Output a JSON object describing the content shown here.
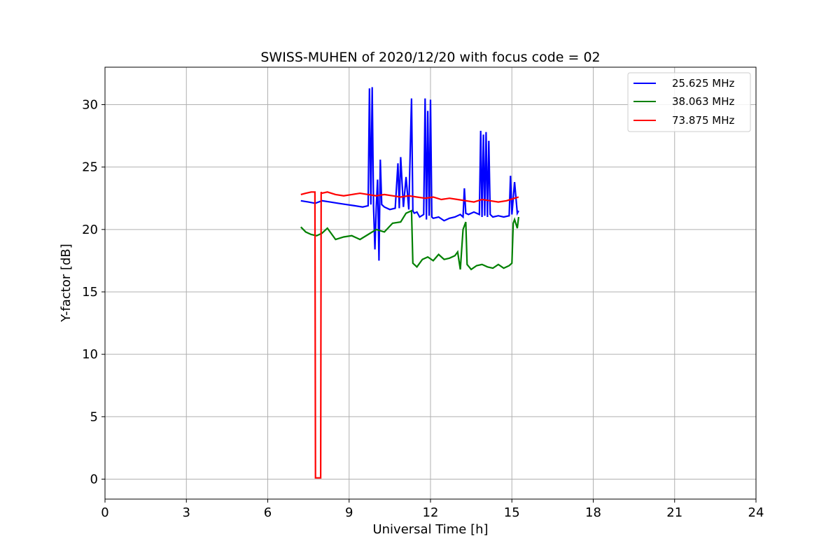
{
  "chart_data": {
    "type": "line",
    "title": "SWISS-MUHEN of 2020/12/20 with focus code = 02",
    "xlabel": "Universal Time [h]",
    "ylabel": "Y-factor [dB]",
    "xlim": [
      0,
      24
    ],
    "ylim": [
      -1.6,
      33
    ],
    "xticks": [
      "0",
      "3",
      "6",
      "9",
      "12",
      "15",
      "18",
      "21",
      "24"
    ],
    "yticks": [
      "0",
      "5",
      "10",
      "15",
      "20",
      "25",
      "30"
    ],
    "xtick_values": [
      0,
      3,
      6,
      9,
      12,
      15,
      18,
      21,
      24
    ],
    "ytick_values": [
      0,
      5,
      10,
      15,
      20,
      25,
      30
    ],
    "grid": true,
    "legend_position": "top-right",
    "series": [
      {
        "name": "25.625 MHz",
        "color": "#0000ff",
        "x": [
          7.22,
          7.5,
          7.75,
          8.0,
          8.3,
          8.6,
          8.9,
          9.2,
          9.5,
          9.7,
          9.75,
          9.8,
          9.85,
          9.9,
          9.95,
          10.0,
          10.05,
          10.1,
          10.15,
          10.2,
          10.3,
          10.5,
          10.7,
          10.8,
          10.85,
          10.9,
          11.0,
          11.1,
          11.2,
          11.3,
          11.35,
          11.4,
          11.5,
          11.6,
          11.75,
          11.8,
          11.85,
          11.9,
          11.95,
          12.0,
          12.05,
          12.1,
          12.3,
          12.5,
          12.7,
          12.9,
          13.1,
          13.2,
          13.25,
          13.3,
          13.4,
          13.6,
          13.8,
          13.85,
          13.9,
          13.95,
          14.0,
          14.05,
          14.1,
          14.15,
          14.2,
          14.3,
          14.5,
          14.7,
          14.9,
          14.95,
          15.0,
          15.1,
          15.2,
          15.25
        ],
        "y": [
          22.3,
          22.2,
          22.1,
          22.3,
          22.2,
          22.1,
          22.0,
          21.9,
          21.8,
          21.9,
          31.3,
          22.0,
          31.4,
          21.9,
          18.4,
          21.8,
          24.0,
          17.5,
          25.6,
          22.0,
          21.8,
          21.6,
          21.7,
          25.3,
          21.7,
          25.8,
          21.8,
          24.2,
          21.6,
          30.5,
          21.5,
          21.3,
          21.4,
          21.0,
          21.2,
          30.5,
          20.8,
          29.5,
          21.1,
          30.4,
          21.0,
          20.9,
          21.0,
          20.7,
          20.9,
          21.0,
          21.2,
          21.0,
          23.3,
          21.3,
          21.2,
          21.4,
          21.2,
          27.9,
          21.0,
          27.6,
          21.1,
          27.8,
          21.0,
          27.1,
          21.2,
          21.0,
          21.1,
          21.0,
          21.1,
          24.3,
          21.2,
          23.8,
          21.3,
          21.5
        ]
      },
      {
        "name": "38.063 MHz",
        "color": "#008000",
        "x": [
          7.22,
          7.4,
          7.6,
          7.8,
          8.0,
          8.2,
          8.5,
          8.8,
          9.1,
          9.4,
          9.7,
          10.0,
          10.3,
          10.6,
          10.9,
          11.1,
          11.3,
          11.35,
          11.5,
          11.7,
          11.9,
          12.1,
          12.3,
          12.5,
          12.7,
          12.9,
          13.0,
          13.1,
          13.2,
          13.3,
          13.35,
          13.5,
          13.7,
          13.9,
          14.1,
          14.3,
          14.5,
          14.7,
          14.9,
          15.0,
          15.05,
          15.1,
          15.2,
          15.25
        ],
        "y": [
          20.2,
          19.8,
          19.6,
          19.5,
          19.7,
          20.1,
          19.2,
          19.4,
          19.5,
          19.2,
          19.6,
          20.0,
          19.8,
          20.5,
          20.6,
          21.3,
          21.5,
          17.3,
          17.0,
          17.6,
          17.8,
          17.5,
          18.0,
          17.6,
          17.7,
          17.9,
          18.2,
          16.8,
          20.0,
          20.6,
          17.2,
          16.8,
          17.1,
          17.2,
          17.0,
          16.9,
          17.2,
          16.9,
          17.1,
          17.3,
          20.5,
          20.8,
          20.1,
          21.0
        ]
      },
      {
        "name": "73.875 MHz",
        "color": "#ff0000",
        "x": [
          7.22,
          7.4,
          7.6,
          7.74,
          7.76,
          7.8,
          7.95,
          7.97,
          7.99,
          8.2,
          8.5,
          8.8,
          9.1,
          9.4,
          9.7,
          10.0,
          10.3,
          10.6,
          10.9,
          11.2,
          11.5,
          11.8,
          12.1,
          12.4,
          12.7,
          13.0,
          13.3,
          13.6,
          13.9,
          14.2,
          14.5,
          14.8,
          15.1,
          15.25
        ],
        "y": [
          22.8,
          22.9,
          23.0,
          23.0,
          0.1,
          0.1,
          0.1,
          23.0,
          22.9,
          23.0,
          22.8,
          22.7,
          22.8,
          22.9,
          22.8,
          22.7,
          22.8,
          22.7,
          22.6,
          22.7,
          22.6,
          22.5,
          22.6,
          22.4,
          22.5,
          22.4,
          22.3,
          22.2,
          22.4,
          22.3,
          22.2,
          22.3,
          22.5,
          22.6
        ]
      }
    ]
  }
}
